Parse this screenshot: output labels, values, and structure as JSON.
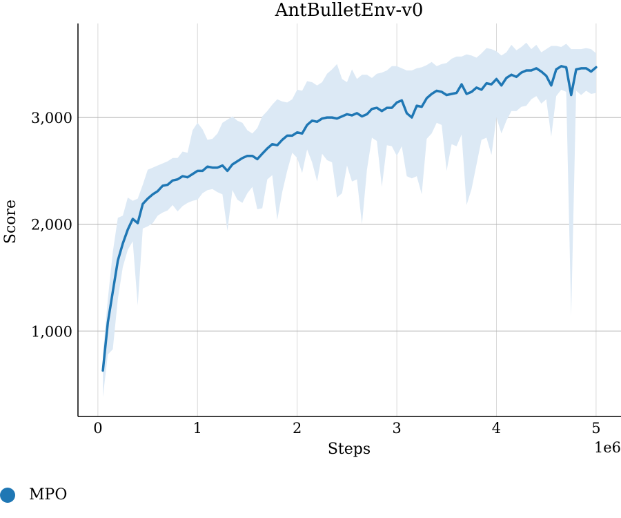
{
  "chart_data": {
    "type": "line",
    "title": "AntBulletEnv-v0",
    "xlabel": "Steps",
    "ylabel": "Score",
    "x_offset_label": "1e6",
    "xlim": [
      -200000,
      5250000
    ],
    "ylim": [
      200,
      3880
    ],
    "xticks": [
      0,
      1000000,
      2000000,
      3000000,
      4000000,
      5000000
    ],
    "xtick_labels": [
      "0",
      "1",
      "2",
      "3",
      "4",
      "5"
    ],
    "yticks": [
      1000,
      2000,
      3000
    ],
    "ytick_labels": [
      "1,000",
      "2,000",
      "3,000"
    ],
    "grid": true,
    "legend_position": "bottom-left",
    "series": [
      {
        "name": "MPO",
        "color": "#1f77b4",
        "band_color": "#dce9f5",
        "x": [
          50000,
          100000,
          150000,
          200000,
          250000,
          300000,
          350000,
          400000,
          450000,
          500000,
          550000,
          600000,
          650000,
          700000,
          750000,
          800000,
          850000,
          900000,
          950000,
          1000000,
          1050000,
          1100000,
          1150000,
          1200000,
          1250000,
          1300000,
          1350000,
          1400000,
          1450000,
          1500000,
          1550000,
          1600000,
          1650000,
          1700000,
          1750000,
          1800000,
          1850000,
          1900000,
          1950000,
          2000000,
          2050000,
          2100000,
          2150000,
          2200000,
          2250000,
          2300000,
          2350000,
          2400000,
          2450000,
          2500000,
          2550000,
          2600000,
          2650000,
          2700000,
          2750000,
          2800000,
          2850000,
          2900000,
          2950000,
          3000000,
          3050000,
          3100000,
          3150000,
          3200000,
          3250000,
          3300000,
          3350000,
          3400000,
          3450000,
          3500000,
          3550000,
          3600000,
          3650000,
          3700000,
          3750000,
          3800000,
          3850000,
          3900000,
          3950000,
          4000000,
          4050000,
          4100000,
          4150000,
          4200000,
          4250000,
          4300000,
          4350000,
          4400000,
          4450000,
          4500000,
          4550000,
          4600000,
          4650000,
          4700000,
          4750000,
          4800000,
          4850000,
          4900000,
          4950000,
          5000000
        ],
        "y": [
          630,
          1080,
          1370,
          1660,
          1820,
          1950,
          2050,
          2010,
          2190,
          2240,
          2280,
          2310,
          2360,
          2370,
          2410,
          2420,
          2450,
          2440,
          2470,
          2500,
          2500,
          2540,
          2530,
          2530,
          2550,
          2500,
          2560,
          2590,
          2620,
          2640,
          2640,
          2610,
          2660,
          2710,
          2750,
          2740,
          2790,
          2830,
          2830,
          2860,
          2850,
          2930,
          2970,
          2960,
          2990,
          3000,
          3000,
          2990,
          3010,
          3030,
          3020,
          3040,
          3010,
          3030,
          3080,
          3090,
          3060,
          3090,
          3090,
          3140,
          3160,
          3040,
          3000,
          3110,
          3100,
          3180,
          3220,
          3250,
          3240,
          3210,
          3220,
          3230,
          3310,
          3220,
          3240,
          3280,
          3260,
          3320,
          3310,
          3360,
          3300,
          3370,
          3400,
          3380,
          3420,
          3440,
          3440,
          3460,
          3430,
          3390,
          3300,
          3450,
          3480,
          3470,
          3210,
          3450,
          3460,
          3460,
          3430,
          3470
        ],
        "lower": [
          380,
          780,
          830,
          1300,
          1600,
          1760,
          1840,
          1240,
          1960,
          1980,
          2010,
          2080,
          2110,
          2130,
          2180,
          2120,
          2170,
          2200,
          2220,
          2230,
          2290,
          2320,
          2330,
          2300,
          2280,
          1940,
          2320,
          2230,
          2200,
          2290,
          2350,
          2140,
          2150,
          2420,
          2460,
          2040,
          2300,
          2500,
          2670,
          2620,
          2480,
          2700,
          2580,
          2400,
          2660,
          2600,
          2580,
          2250,
          2290,
          2550,
          2400,
          2420,
          2000,
          2510,
          2810,
          2780,
          2350,
          2740,
          2730,
          2640,
          2730,
          2450,
          2430,
          2450,
          2280,
          2800,
          2850,
          2950,
          2930,
          2500,
          2750,
          2730,
          2840,
          2180,
          2330,
          2560,
          2790,
          2810,
          2650,
          3000,
          2850,
          2970,
          3060,
          3060,
          3100,
          3110,
          3170,
          3200,
          3130,
          3170,
          2820,
          3200,
          3260,
          3240,
          1140,
          3250,
          3210,
          3250,
          3220,
          3230
        ],
        "upper": [
          780,
          1300,
          1740,
          2060,
          2080,
          2250,
          2220,
          2240,
          2370,
          2510,
          2530,
          2550,
          2570,
          2590,
          2620,
          2620,
          2680,
          2670,
          2880,
          2950,
          2890,
          2790,
          2800,
          2850,
          2950,
          2980,
          3010,
          2970,
          2950,
          2880,
          2850,
          2900,
          3010,
          3060,
          3120,
          3170,
          3150,
          3140,
          3170,
          3260,
          3250,
          3340,
          3330,
          3300,
          3330,
          3410,
          3450,
          3500,
          3360,
          3330,
          3450,
          3360,
          3400,
          3400,
          3370,
          3410,
          3420,
          3440,
          3480,
          3480,
          3460,
          3440,
          3440,
          3460,
          3470,
          3490,
          3520,
          3480,
          3500,
          3510,
          3550,
          3570,
          3570,
          3590,
          3580,
          3560,
          3600,
          3650,
          3640,
          3620,
          3580,
          3610,
          3680,
          3630,
          3660,
          3700,
          3640,
          3680,
          3610,
          3640,
          3670,
          3670,
          3660,
          3690,
          3640,
          3640,
          3640,
          3650,
          3640,
          3600
        ]
      }
    ]
  }
}
